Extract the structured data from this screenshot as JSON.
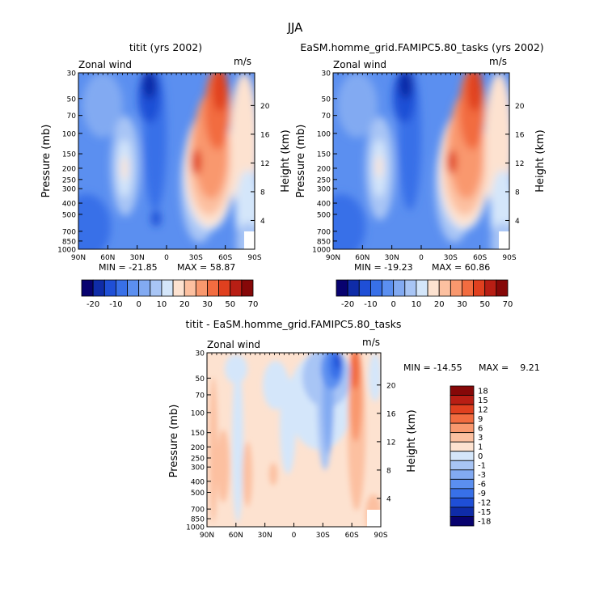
{
  "figure": {
    "title": "JJA"
  },
  "levels_top": [
    -20,
    -15,
    -10,
    -5,
    0,
    5,
    10,
    15,
    20,
    25,
    30,
    40,
    50,
    60,
    70
  ],
  "colors_top": [
    "#08026f",
    "#0f2ca8",
    "#1f4fd6",
    "#3870e8",
    "#5b8ff0",
    "#82aaf2",
    "#a8c5f5",
    "#d4e6fa",
    "#fde2d0",
    "#fcc0a0",
    "#f9986e",
    "#f26c40",
    "#e0401f",
    "#b81e14",
    "#860808"
  ],
  "levels_diff": [
    -18,
    -15,
    -12,
    -9,
    -6,
    -3,
    -1,
    0,
    1,
    3,
    6,
    9,
    12,
    15,
    18
  ],
  "colors_diff": [
    "#08026f",
    "#0f2ca8",
    "#1f4fd6",
    "#3870e8",
    "#5b8ff0",
    "#82aaf2",
    "#a8c5f5",
    "#d4e6fa",
    "#fde2d0",
    "#fcc0a0",
    "#f9986e",
    "#f26c40",
    "#e0401f",
    "#b81e14",
    "#860808"
  ],
  "chart_data": [
    {
      "type": "heatmap",
      "title": "titit (yrs 2002)",
      "variable_label": "Zonal wind",
      "units": "m/s",
      "ylabel": "Pressure (mb)",
      "y2label": "Height (km)",
      "x_ticks": [
        "90N",
        "60N",
        "30N",
        "0",
        "30S",
        "60S",
        "90S"
      ],
      "y_ticks": [
        "30",
        "50",
        "70",
        "100",
        "150",
        "200",
        "250",
        "300",
        "400",
        "500",
        "700",
        "850",
        "1000"
      ],
      "y2_ticks": [
        "20",
        "16",
        "12",
        "8",
        "4"
      ],
      "min_label": "MIN = -21.85",
      "max_label": "MAX = 58.87",
      "min": -21.85,
      "max": 58.87,
      "colorbar_labels": [
        "-20",
        "-10",
        "0",
        "10",
        "20",
        "30",
        "50",
        "70"
      ]
    },
    {
      "type": "heatmap",
      "title": "EaSM.homme_grid.FAMIPC5.80_tasks (yrs 2002)",
      "variable_label": "Zonal wind",
      "units": "m/s",
      "ylabel": "Pressure (mb)",
      "y2label": "Height (km)",
      "x_ticks": [
        "90N",
        "60N",
        "30N",
        "0",
        "30S",
        "60S",
        "90S"
      ],
      "y_ticks": [
        "30",
        "50",
        "70",
        "100",
        "150",
        "200",
        "250",
        "300",
        "400",
        "500",
        "700",
        "850",
        "1000"
      ],
      "y2_ticks": [
        "20",
        "16",
        "12",
        "8",
        "4"
      ],
      "min_label": "MIN = -19.23",
      "max_label": "MAX = 60.86",
      "min": -19.23,
      "max": 60.86,
      "colorbar_labels": [
        "-20",
        "-10",
        "0",
        "10",
        "20",
        "30",
        "50",
        "70"
      ]
    },
    {
      "type": "heatmap",
      "title": "titit - EaSM.homme_grid.FAMIPC5.80_tasks",
      "variable_label": "Zonal wind",
      "units": "m/s",
      "ylabel": "Pressure (mb)",
      "y2label": "Height (km)",
      "x_ticks": [
        "90N",
        "60N",
        "30N",
        "0",
        "30S",
        "60S",
        "90S"
      ],
      "y_ticks": [
        "30",
        "50",
        "70",
        "100",
        "150",
        "200",
        "250",
        "300",
        "400",
        "500",
        "700",
        "850",
        "1000"
      ],
      "y2_ticks": [
        "20",
        "16",
        "12",
        "8",
        "4"
      ],
      "min_label": "MIN = -14.55",
      "max_label": "MAX =    9.21",
      "min": -14.55,
      "max": 9.21,
      "colorbar_labels": [
        "18",
        "15",
        "12",
        "9",
        "6",
        "3",
        "1",
        "0",
        "-1",
        "-3",
        "-6",
        "-9",
        "-12",
        "-15",
        "-18"
      ]
    }
  ]
}
